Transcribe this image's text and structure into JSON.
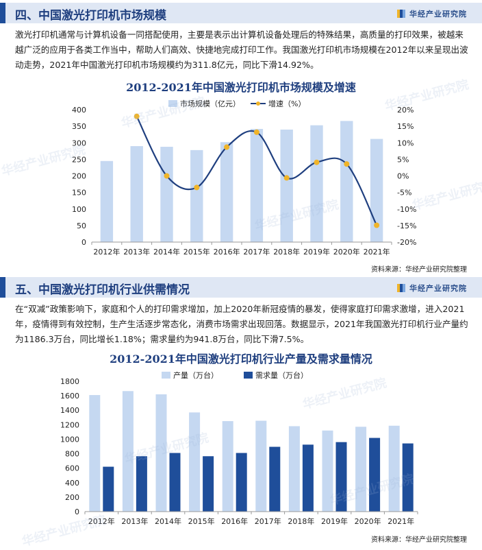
{
  "brand": "华经产业研究院",
  "section4": {
    "title": "四、中国激光打印机市场规模",
    "paragraph": "激光打印机通常与计算机设备一同搭配使用，主要是表示出计算机设备处理后的特殊结果，高质量的打印效果，被越来越广泛的应用于各类工作当中，帮助人们高效、快捷地完成打印工作。我国激光打印机市场规模在2012年以来呈现出波动走势，2021年中国激光打印机市场规模约为311.8亿元，同比下滑14.92%。",
    "source": "资料来源：华经产业研究院整理"
  },
  "section5": {
    "title": "五、中国激光打印机行业供需情况",
    "paragraph": "在“双减”政策影响下，家庭和个人的打印需求增加，加上2020年新冠疫情的暴发，使得家庭打印需求激增，进入2021年，疫情得到有效控制，生产生活逐步常态化，消费市场需求出现回落。数据显示，2021年我国激光打印机行业产量约为1186.3万台，同比增长1.18%；需求量约为941.8万台，同比下滑7.5%。",
    "source": "资料来源：华经产业研究院整理"
  },
  "watermark": "华经产业研究院",
  "chart_data": [
    {
      "type": "bar+line",
      "title": "2012-2021年中国激光打印机市场规模及增速",
      "categories": [
        "2012年",
        "2013年",
        "2014年",
        "2015年",
        "2016年",
        "2017年",
        "2018年",
        "2019年",
        "2020年",
        "2021年"
      ],
      "series": [
        {
          "name": "市场规模（亿元）",
          "type": "bar",
          "axis": "left",
          "values": [
            245,
            290,
            288,
            278,
            302,
            342,
            340,
            353,
            366,
            311.8
          ]
        },
        {
          "name": "增速（%）",
          "type": "line",
          "axis": "right",
          "values": [
            null,
            18,
            0,
            -3.5,
            8.7,
            13.2,
            -0.6,
            4.1,
            3.6,
            -14.92
          ]
        }
      ],
      "ylim_left": [
        0,
        400
      ],
      "yticks_left": [
        "0",
        "50",
        "100",
        "150",
        "200",
        "250",
        "300",
        "350",
        "400"
      ],
      "ylim_right": [
        -20,
        20
      ],
      "yticks_right": [
        "-20%",
        "-15%",
        "-10%",
        "-5%",
        "0%",
        "5%",
        "10%",
        "15%",
        "20%"
      ],
      "legend": "top-center",
      "grid": false,
      "colors": {
        "bar": "#c5d8f1",
        "line": "#1f3f7f",
        "marker": "#f0b429"
      }
    },
    {
      "type": "bar",
      "title": "2012-2021年中国激光打印机行业产量及需求量情况",
      "categories": [
        "2012年",
        "2013年",
        "2014年",
        "2015年",
        "2016年",
        "2017年",
        "2018年",
        "2019年",
        "2020年",
        "2021年"
      ],
      "series": [
        {
          "name": "产量（万台）",
          "values": [
            1610,
            1665,
            1620,
            1370,
            1250,
            1255,
            1180,
            1120,
            1172,
            1186.3
          ]
        },
        {
          "name": "需求量（万台）",
          "values": [
            620,
            765,
            810,
            765,
            810,
            895,
            925,
            960,
            1018,
            941.8
          ]
        }
      ],
      "ylim": [
        0,
        1800
      ],
      "yticks": [
        "0",
        "200",
        "400",
        "600",
        "800",
        "1000",
        "1200",
        "1400",
        "1600",
        "1800"
      ],
      "legend": "top-left",
      "grid": false,
      "colors": {
        "production": "#c5d8f1",
        "demand": "#1f4e9a"
      }
    }
  ]
}
